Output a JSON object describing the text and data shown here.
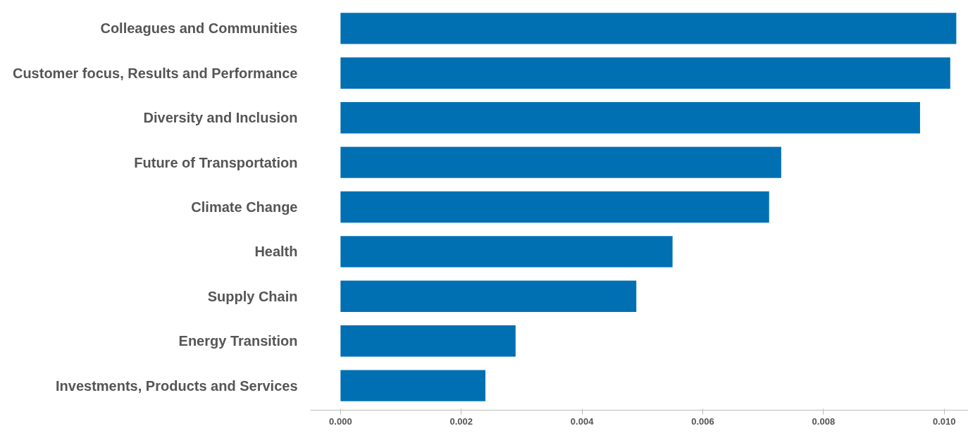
{
  "chart_data": {
    "type": "bar",
    "orientation": "horizontal",
    "categories": [
      "Colleagues and Communities",
      "Customer focus, Results and Performance",
      "Diversity and Inclusion",
      "Future of Transportation",
      "Climate Change",
      "Health",
      "Supply Chain",
      "Energy Transition",
      "Investments, Products and Services"
    ],
    "values": [
      0.0102,
      0.0101,
      0.0096,
      0.0073,
      0.0071,
      0.0055,
      0.0049,
      0.0029,
      0.0024
    ],
    "color": "#0070b3",
    "xlim": [
      -0.0005,
      0.0104
    ],
    "xticks": [
      {
        "value": 0,
        "label": "0.000"
      },
      {
        "value": 0.002,
        "label": "0.002"
      },
      {
        "value": 0.004,
        "label": "0.004"
      },
      {
        "value": 0.006,
        "label": "0.006"
      },
      {
        "value": 0.008,
        "label": "0.008"
      },
      {
        "value": 0.01,
        "label": "0.010"
      }
    ],
    "grid": false
  }
}
